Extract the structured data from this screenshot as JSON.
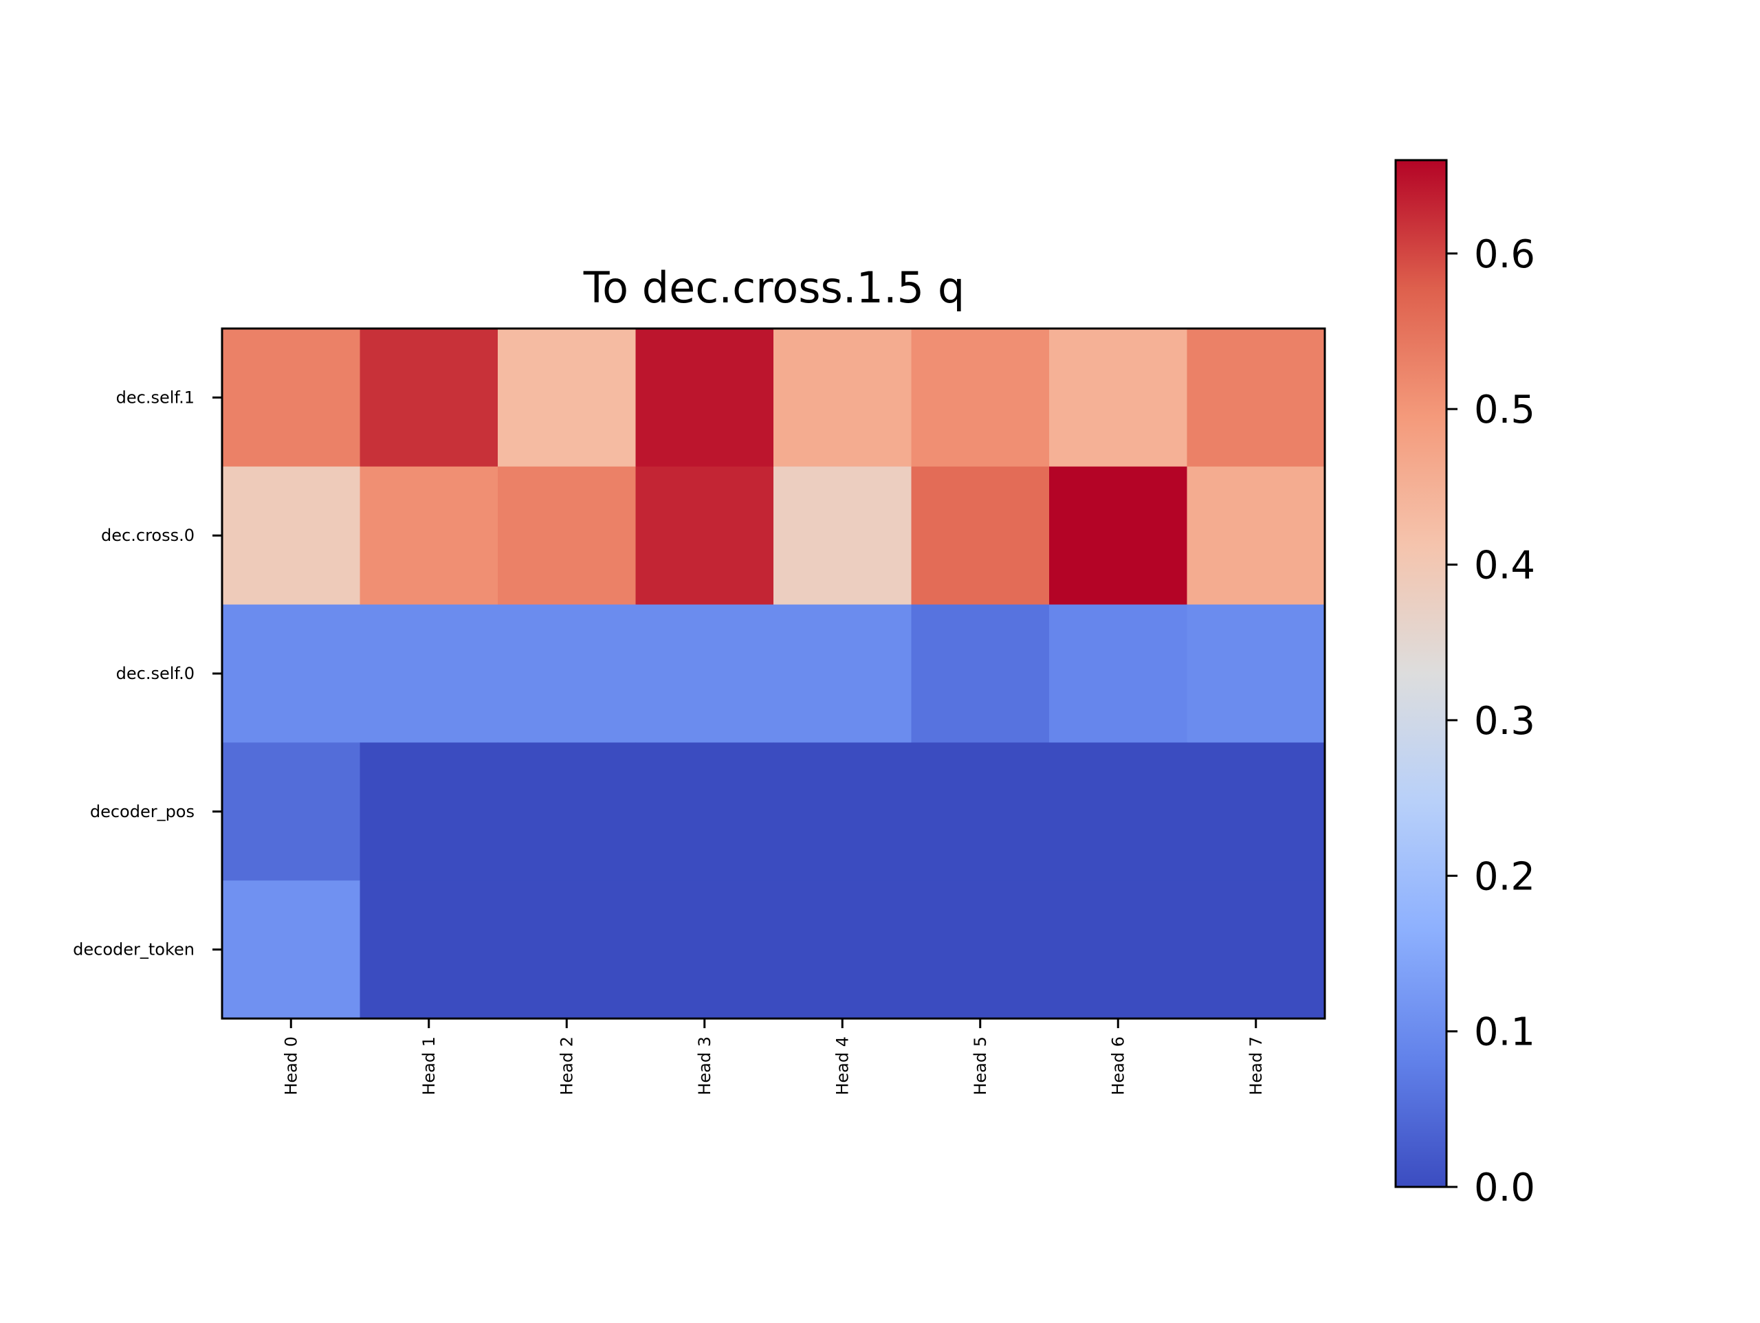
{
  "chart_data": {
    "type": "heatmap",
    "title": "To dec.cross.1.5 q",
    "xlabel": "",
    "ylabel": "",
    "columns": [
      "Head 0",
      "Head 1",
      "Head 2",
      "Head 3",
      "Head 4",
      "Head 5",
      "Head 6",
      "Head 7"
    ],
    "rows": [
      "dec.self.1",
      "dec.cross.0",
      "dec.self.0",
      "decoder_pos",
      "decoder_token"
    ],
    "values": [
      [
        0.53,
        0.62,
        0.43,
        0.645,
        0.46,
        0.51,
        0.45,
        0.53
      ],
      [
        0.39,
        0.51,
        0.53,
        0.63,
        0.38,
        0.56,
        0.66,
        0.46
      ],
      [
        0.1,
        0.1,
        0.1,
        0.1,
        0.1,
        0.06,
        0.09,
        0.1
      ],
      [
        0.05,
        0.0,
        0.0,
        0.0,
        0.0,
        0.0,
        0.0,
        0.0
      ],
      [
        0.11,
        0.0,
        0.0,
        0.0,
        0.0,
        0.0,
        0.0,
        0.0
      ]
    ],
    "colormap": "coolwarm",
    "vmin": 0.0,
    "vmax": 0.66,
    "colorbar": {
      "ticks": [
        0.0,
        0.1,
        0.2,
        0.3,
        0.4,
        0.5,
        0.6
      ],
      "tick_labels": [
        "0.0",
        "0.1",
        "0.2",
        "0.3",
        "0.4",
        "0.5",
        "0.6"
      ],
      "placement": "right"
    },
    "grid": false,
    "legend": "none"
  }
}
